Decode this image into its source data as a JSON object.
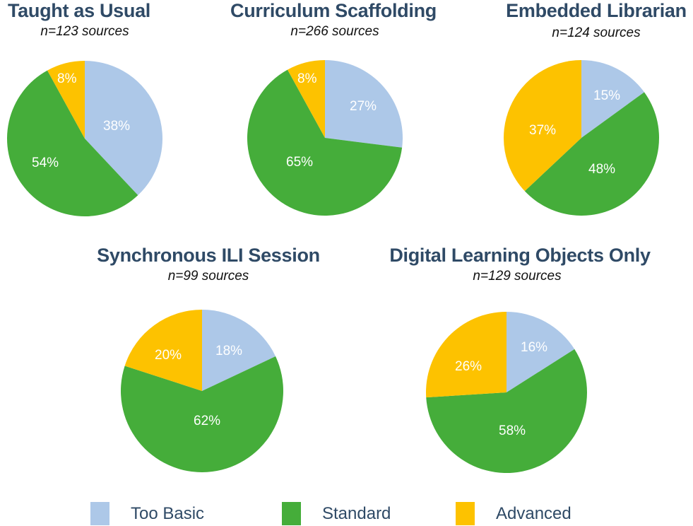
{
  "colors": {
    "too_basic": "#adc8e8",
    "standard": "#45ad3a",
    "advanced": "#fdc200",
    "title": "#2f4a66"
  },
  "legend": [
    {
      "label": "Too Basic",
      "color": "#adc8e8"
    },
    {
      "label": "Standard",
      "color": "#45ad3a"
    },
    {
      "label": "Advanced",
      "color": "#fdc200"
    }
  ],
  "charts": [
    {
      "title": "Taught as Usual",
      "subtitle": "n=123 sources",
      "labels": {
        "too_basic": "38%",
        "standard": "54%",
        "advanced": "8%"
      }
    },
    {
      "title": "Curriculum Scaffolding",
      "subtitle": "n=266 sources",
      "labels": {
        "too_basic": "27%",
        "standard": "65%",
        "advanced": "8%"
      }
    },
    {
      "title": "Embedded Librarian",
      "subtitle": "n=124 sources",
      "labels": {
        "too_basic": "15%",
        "standard": "48%",
        "advanced": "37%"
      }
    },
    {
      "title": "Synchronous ILI  Session",
      "subtitle": "n=99 sources",
      "labels": {
        "too_basic": "18%",
        "standard": "62%",
        "advanced": "20%"
      }
    },
    {
      "title": "Digital Learning Objects Only",
      "subtitle": "n=129 sources",
      "labels": {
        "too_basic": "16%",
        "standard": "58%",
        "advanced": "26%"
      }
    }
  ],
  "chart_data": [
    {
      "type": "pie",
      "title": "Taught as Usual",
      "subtitle": "n=123 sources",
      "categories": [
        "Too Basic",
        "Standard",
        "Advanced"
      ],
      "values": [
        38,
        54,
        8
      ],
      "colors": [
        "#adc8e8",
        "#45ad3a",
        "#fdc200"
      ],
      "legend_position": "bottom"
    },
    {
      "type": "pie",
      "title": "Curriculum Scaffolding",
      "subtitle": "n=266 sources",
      "categories": [
        "Too Basic",
        "Standard",
        "Advanced"
      ],
      "values": [
        27,
        65,
        8
      ],
      "colors": [
        "#adc8e8",
        "#45ad3a",
        "#fdc200"
      ],
      "legend_position": "bottom"
    },
    {
      "type": "pie",
      "title": "Embedded Librarian",
      "subtitle": "n=124 sources",
      "categories": [
        "Too Basic",
        "Standard",
        "Advanced"
      ],
      "values": [
        15,
        48,
        37
      ],
      "colors": [
        "#adc8e8",
        "#45ad3a",
        "#fdc200"
      ],
      "legend_position": "bottom"
    },
    {
      "type": "pie",
      "title": "Synchronous ILI  Session",
      "subtitle": "n=99 sources",
      "categories": [
        "Too Basic",
        "Standard",
        "Advanced"
      ],
      "values": [
        18,
        62,
        20
      ],
      "colors": [
        "#adc8e8",
        "#45ad3a",
        "#fdc200"
      ],
      "legend_position": "bottom"
    },
    {
      "type": "pie",
      "title": "Digital Learning Objects Only",
      "subtitle": "n=129 sources",
      "categories": [
        "Too Basic",
        "Standard",
        "Advanced"
      ],
      "values": [
        16,
        58,
        26
      ],
      "colors": [
        "#adc8e8",
        "#45ad3a",
        "#fdc200"
      ],
      "legend_position": "bottom"
    }
  ]
}
